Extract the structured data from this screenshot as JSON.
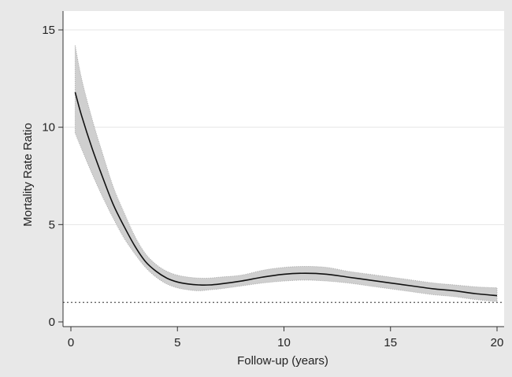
{
  "chart_data": {
    "type": "line",
    "title": "",
    "xlabel": "Follow-up (years)",
    "ylabel": "Mortality Rate Ratio",
    "xlim": [
      0,
      20
    ],
    "ylim": [
      0,
      15
    ],
    "x_ticks": [
      0,
      5,
      10,
      15,
      20
    ],
    "y_ticks": [
      0,
      5,
      10,
      15
    ],
    "grid": "horizontal",
    "reference_line": {
      "y": 1,
      "style": "dotted"
    },
    "series": [
      {
        "x": [
          0.2,
          0.5,
          1,
          1.5,
          2,
          2.5,
          3,
          3.5,
          4,
          4.5,
          5,
          5.5,
          6,
          6.5,
          7,
          8,
          9,
          10,
          11,
          12,
          13,
          14,
          15,
          16,
          17,
          18,
          19,
          20
        ],
        "values": [
          11.8,
          10.6,
          8.9,
          7.4,
          6.0,
          4.9,
          3.9,
          3.1,
          2.6,
          2.25,
          2.05,
          1.95,
          1.9,
          1.9,
          1.95,
          2.1,
          2.3,
          2.45,
          2.5,
          2.45,
          2.3,
          2.15,
          2.0,
          1.85,
          1.7,
          1.6,
          1.45,
          1.35
        ],
        "ci_lower": [
          9.7,
          8.9,
          7.6,
          6.4,
          5.3,
          4.3,
          3.5,
          2.8,
          2.3,
          1.95,
          1.75,
          1.65,
          1.6,
          1.65,
          1.7,
          1.85,
          2.0,
          2.1,
          2.15,
          2.1,
          2.0,
          1.85,
          1.7,
          1.55,
          1.4,
          1.3,
          1.15,
          1.05
        ],
        "ci_upper": [
          14.2,
          12.5,
          10.4,
          8.6,
          6.9,
          5.6,
          4.4,
          3.5,
          2.95,
          2.6,
          2.4,
          2.3,
          2.25,
          2.25,
          2.3,
          2.4,
          2.65,
          2.8,
          2.85,
          2.8,
          2.6,
          2.45,
          2.3,
          2.15,
          2.0,
          1.9,
          1.8,
          1.75
        ]
      }
    ]
  }
}
